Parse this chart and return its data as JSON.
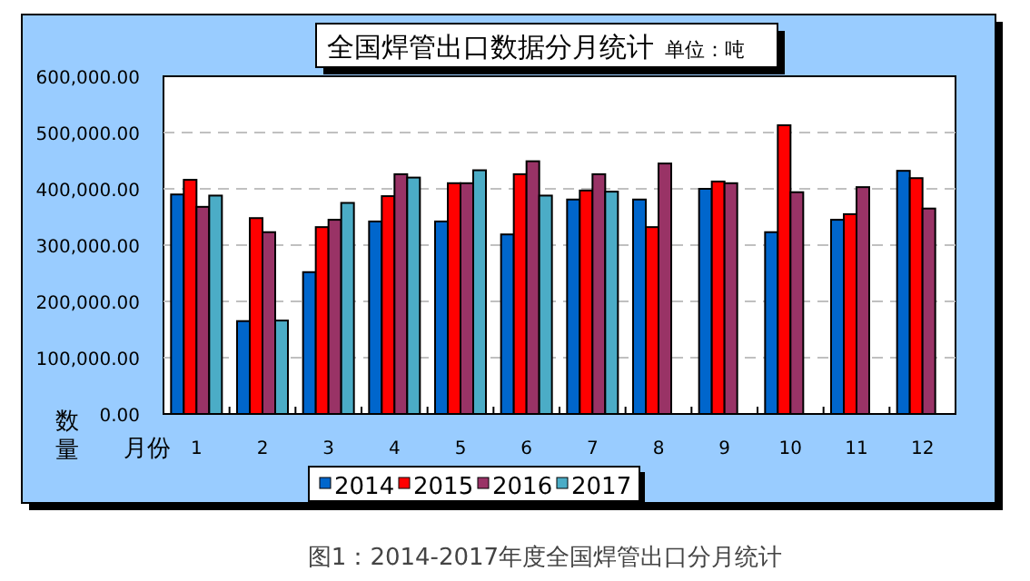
{
  "chart_data": {
    "type": "bar",
    "title": "全国焊管出口数据分月统计",
    "subtitle": "单位：吨",
    "ylabel": "数量",
    "xlabel": "月份",
    "categories": [
      "1",
      "2",
      "3",
      "4",
      "5",
      "6",
      "7",
      "8",
      "9",
      "10",
      "11",
      "12"
    ],
    "series": [
      {
        "name": "2014",
        "color": "#0066cc",
        "values": [
          390000,
          165000,
          252000,
          342000,
          342000,
          319000,
          381000,
          381000,
          400000,
          323000,
          345000,
          432000
        ]
      },
      {
        "name": "2015",
        "color": "#ff0000",
        "values": [
          416000,
          348000,
          332000,
          387000,
          410000,
          426000,
          397000,
          332000,
          413000,
          513000,
          355000,
          419000
        ]
      },
      {
        "name": "2016",
        "color": "#993366",
        "values": [
          368000,
          323000,
          345000,
          426000,
          410000,
          449000,
          426000,
          445000,
          410000,
          394000,
          403000,
          365000
        ]
      },
      {
        "name": "2017",
        "color": "#4bacc6",
        "values": [
          388000,
          166000,
          375000,
          420000,
          433000,
          388000,
          395000,
          null,
          null,
          null,
          null,
          null
        ]
      }
    ],
    "ylim": [
      0,
      600000
    ],
    "yticks": [
      {
        "value": 0,
        "label": "0.00"
      },
      {
        "value": 100000,
        "label": "100,000.00"
      },
      {
        "value": 200000,
        "label": "200,000.00"
      },
      {
        "value": 300000,
        "label": "300,000.00"
      },
      {
        "value": 400000,
        "label": "400,000.00"
      },
      {
        "value": 500000,
        "label": "500,000.00"
      },
      {
        "value": 600000,
        "label": "600,000.00"
      }
    ],
    "grid": "y",
    "legend": "bottom",
    "annotations": [
      "图1：2014-2017年度全国焊管出口分月统计"
    ]
  }
}
